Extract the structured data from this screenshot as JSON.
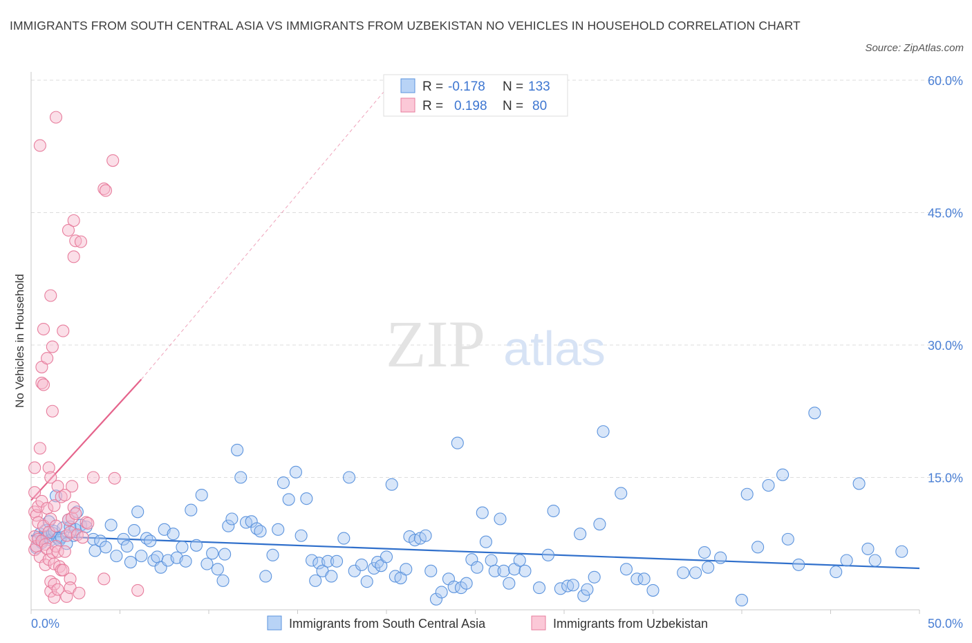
{
  "title": "IMMIGRANTS FROM SOUTH CENTRAL ASIA VS IMMIGRANTS FROM UZBEKISTAN NO VEHICLES IN HOUSEHOLD CORRELATION CHART",
  "source": "Source: ZipAtlas.com",
  "watermark": {
    "zip": "ZIP",
    "atlas": "atlas"
  },
  "colors": {
    "blue_fill": "#a9c8f2",
    "blue_stroke": "#5b93dd",
    "blue_line": "#2f6fcb",
    "pink_fill": "#f6b8cb",
    "pink_stroke": "#e77c9c",
    "pink_line": "#e5648c",
    "grid": "#dddddd",
    "tick_label": "#4a7fd4"
  },
  "stats": [
    {
      "r_label": "R =",
      "r_value": "-0.178",
      "n_label": "N =",
      "n_value": "133"
    },
    {
      "r_label": "R =",
      "r_value": "0.198",
      "n_label": "N =",
      "n_value": "80"
    }
  ],
  "chart_data": {
    "type": "scatter",
    "ylabel": "No Vehicles in Household",
    "xlim": [
      0,
      50
    ],
    "ylim": [
      0,
      60
    ],
    "x_tick_labels": [
      "0.0%",
      "50.0%"
    ],
    "y_ticks": [
      15,
      30,
      45,
      60
    ],
    "y_tick_labels": [
      "15.0%",
      "30.0%",
      "45.0%",
      "60.0%"
    ],
    "grid": "horizontal dashed",
    "legend_position": "bottom-center",
    "series": [
      {
        "name": "Immigrants from South Central Asia",
        "color": "blue",
        "trend": {
          "x": [
            0,
            50
          ],
          "y": [
            8.4,
            4.7
          ],
          "style": "solid"
        },
        "points": [
          [
            0.3,
            7.0
          ],
          [
            0.4,
            8.2
          ],
          [
            0.5,
            8.6
          ],
          [
            0.6,
            7.6
          ],
          [
            0.7,
            8.1
          ],
          [
            0.8,
            9.0
          ],
          [
            0.9,
            8.3
          ],
          [
            1.0,
            10.0
          ],
          [
            1.1,
            7.9
          ],
          [
            1.2,
            8.7
          ],
          [
            1.3,
            8.9
          ],
          [
            1.4,
            12.9
          ],
          [
            1.5,
            8.1
          ],
          [
            1.6,
            7.9
          ],
          [
            1.7,
            8.2
          ],
          [
            1.8,
            9.3
          ],
          [
            2.0,
            7.5
          ],
          [
            2.1,
            10.2
          ],
          [
            2.2,
            9.4
          ],
          [
            2.4,
            8.4
          ],
          [
            2.5,
            9.1
          ],
          [
            2.6,
            11.1
          ],
          [
            2.8,
            9.6
          ],
          [
            3.1,
            9.4
          ],
          [
            3.5,
            8.0
          ],
          [
            3.6,
            6.7
          ],
          [
            3.9,
            7.8
          ],
          [
            4.2,
            7.1
          ],
          [
            4.5,
            9.6
          ],
          [
            4.8,
            6.1
          ],
          [
            5.2,
            8.0
          ],
          [
            5.4,
            7.2
          ],
          [
            5.6,
            5.4
          ],
          [
            5.8,
            9.0
          ],
          [
            6.0,
            11.1
          ],
          [
            6.2,
            6.1
          ],
          [
            6.5,
            8.1
          ],
          [
            6.7,
            7.8
          ],
          [
            6.9,
            5.6
          ],
          [
            7.1,
            6.0
          ],
          [
            7.3,
            4.8
          ],
          [
            7.5,
            9.1
          ],
          [
            7.7,
            5.6
          ],
          [
            8.0,
            8.6
          ],
          [
            8.2,
            5.9
          ],
          [
            8.5,
            7.1
          ],
          [
            8.7,
            5.5
          ],
          [
            9.0,
            11.3
          ],
          [
            9.3,
            7.3
          ],
          [
            9.6,
            13.0
          ],
          [
            9.9,
            5.2
          ],
          [
            10.2,
            6.4
          ],
          [
            10.5,
            4.6
          ],
          [
            10.8,
            3.3
          ],
          [
            10.9,
            6.3
          ],
          [
            11.1,
            9.5
          ],
          [
            11.3,
            10.3
          ],
          [
            11.6,
            18.1
          ],
          [
            11.8,
            15.0
          ],
          [
            12.1,
            9.9
          ],
          [
            12.4,
            10.0
          ],
          [
            12.7,
            9.2
          ],
          [
            12.9,
            8.9
          ],
          [
            13.2,
            3.8
          ],
          [
            13.6,
            6.2
          ],
          [
            13.9,
            9.1
          ],
          [
            14.2,
            14.4
          ],
          [
            14.5,
            12.5
          ],
          [
            14.9,
            15.6
          ],
          [
            15.2,
            8.4
          ],
          [
            15.5,
            12.6
          ],
          [
            15.8,
            5.6
          ],
          [
            16.0,
            3.3
          ],
          [
            16.2,
            5.3
          ],
          [
            16.4,
            4.4
          ],
          [
            16.7,
            5.5
          ],
          [
            16.9,
            3.8
          ],
          [
            17.2,
            5.5
          ],
          [
            17.6,
            8.1
          ],
          [
            17.9,
            15.0
          ],
          [
            18.2,
            4.4
          ],
          [
            18.6,
            5.1
          ],
          [
            18.9,
            3.2
          ],
          [
            19.3,
            4.7
          ],
          [
            19.5,
            5.4
          ],
          [
            19.7,
            5.0
          ],
          [
            20.0,
            6.0
          ],
          [
            20.3,
            14.2
          ],
          [
            20.5,
            3.8
          ],
          [
            20.8,
            3.6
          ],
          [
            21.1,
            4.6
          ],
          [
            21.3,
            8.3
          ],
          [
            21.6,
            7.9
          ],
          [
            21.9,
            8.1
          ],
          [
            22.2,
            8.4
          ],
          [
            22.5,
            4.4
          ],
          [
            22.8,
            1.2
          ],
          [
            23.1,
            2.0
          ],
          [
            23.5,
            3.5
          ],
          [
            23.8,
            2.6
          ],
          [
            24.0,
            18.9
          ],
          [
            24.2,
            2.5
          ],
          [
            24.5,
            3.0
          ],
          [
            24.8,
            5.7
          ],
          [
            25.1,
            4.8
          ],
          [
            25.4,
            11.0
          ],
          [
            25.6,
            7.7
          ],
          [
            25.9,
            5.6
          ],
          [
            26.1,
            4.4
          ],
          [
            26.4,
            10.3
          ],
          [
            26.6,
            4.4
          ],
          [
            26.9,
            3.0
          ],
          [
            27.2,
            4.6
          ],
          [
            27.5,
            5.6
          ],
          [
            27.8,
            4.4
          ],
          [
            28.6,
            2.5
          ],
          [
            29.1,
            6.2
          ],
          [
            29.4,
            11.2
          ],
          [
            29.8,
            2.4
          ],
          [
            30.2,
            2.7
          ],
          [
            30.5,
            2.8
          ],
          [
            30.9,
            8.6
          ],
          [
            31.1,
            1.6
          ],
          [
            31.3,
            2.3
          ],
          [
            31.7,
            3.7
          ],
          [
            32.0,
            9.7
          ],
          [
            32.2,
            20.2
          ],
          [
            33.2,
            13.2
          ],
          [
            33.5,
            4.6
          ],
          [
            34.1,
            3.5
          ],
          [
            34.5,
            3.5
          ],
          [
            35.0,
            2.2
          ],
          [
            36.7,
            4.2
          ],
          [
            37.4,
            4.2
          ],
          [
            37.9,
            6.5
          ],
          [
            38.1,
            4.8
          ],
          [
            38.8,
            5.9
          ],
          [
            40.3,
            13.1
          ],
          [
            40.9,
            7.1
          ],
          [
            41.5,
            14.1
          ],
          [
            42.3,
            15.3
          ],
          [
            42.6,
            8.0
          ],
          [
            43.2,
            5.1
          ],
          [
            44.1,
            22.3
          ],
          [
            45.3,
            4.3
          ],
          [
            45.9,
            5.6
          ],
          [
            46.6,
            14.3
          ],
          [
            47.1,
            6.9
          ],
          [
            47.5,
            5.6
          ],
          [
            49.0,
            6.6
          ],
          [
            40.0,
            1.1
          ]
        ]
      },
      {
        "name": "Immigrants from Uzbekistan",
        "color": "pink",
        "trend": {
          "x": [
            0,
            6.2
          ],
          "y": [
            12.4,
            26.1
          ],
          "style": "solid",
          "extension": {
            "x": [
              6.2,
              20.4
            ],
            "y": [
              26.1,
              60.0
            ],
            "style": "dashed"
          }
        },
        "points": [
          [
            0.2,
            6.8
          ],
          [
            0.2,
            8.3
          ],
          [
            0.2,
            11.1
          ],
          [
            0.2,
            13.3
          ],
          [
            0.2,
            16.1
          ],
          [
            0.3,
            10.7
          ],
          [
            0.3,
            7.2
          ],
          [
            0.4,
            9.9
          ],
          [
            0.4,
            11.7
          ],
          [
            0.4,
            8.0
          ],
          [
            0.5,
            52.6
          ],
          [
            0.5,
            18.3
          ],
          [
            0.5,
            6.0
          ],
          [
            0.6,
            7.8
          ],
          [
            0.6,
            12.3
          ],
          [
            0.6,
            27.5
          ],
          [
            0.6,
            25.7
          ],
          [
            0.7,
            25.5
          ],
          [
            0.7,
            31.8
          ],
          [
            0.7,
            9.5
          ],
          [
            0.8,
            7.4
          ],
          [
            0.8,
            5.1
          ],
          [
            0.9,
            11.5
          ],
          [
            0.9,
            6.9
          ],
          [
            0.9,
            28.5
          ],
          [
            1.0,
            16.1
          ],
          [
            1.0,
            5.7
          ],
          [
            1.0,
            8.8
          ],
          [
            1.1,
            35.6
          ],
          [
            1.1,
            15.0
          ],
          [
            1.1,
            10.3
          ],
          [
            1.1,
            2.1
          ],
          [
            1.1,
            3.2
          ],
          [
            1.2,
            22.5
          ],
          [
            1.2,
            29.8
          ],
          [
            1.2,
            6.5
          ],
          [
            1.3,
            5.2
          ],
          [
            1.3,
            11.8
          ],
          [
            1.3,
            2.9
          ],
          [
            1.3,
            1.4
          ],
          [
            1.4,
            55.8
          ],
          [
            1.4,
            9.5
          ],
          [
            1.4,
            7.2
          ],
          [
            1.5,
            14.0
          ],
          [
            1.5,
            6.6
          ],
          [
            1.5,
            2.3
          ],
          [
            1.6,
            4.9
          ],
          [
            1.7,
            12.8
          ],
          [
            1.7,
            4.5
          ],
          [
            1.8,
            31.6
          ],
          [
            1.8,
            4.5
          ],
          [
            1.9,
            13.0
          ],
          [
            1.9,
            6.6
          ],
          [
            2.0,
            8.4
          ],
          [
            2.0,
            1.5
          ],
          [
            2.1,
            43.0
          ],
          [
            2.1,
            10.2
          ],
          [
            2.2,
            8.8
          ],
          [
            2.2,
            3.5
          ],
          [
            2.2,
            2.5
          ],
          [
            2.3,
            14.0
          ],
          [
            2.3,
            10.4
          ],
          [
            2.4,
            44.1
          ],
          [
            2.4,
            40.0
          ],
          [
            2.4,
            11.6
          ],
          [
            2.5,
            41.8
          ],
          [
            2.5,
            10.9
          ],
          [
            2.6,
            8.5
          ],
          [
            2.7,
            1.9
          ],
          [
            2.8,
            41.7
          ],
          [
            2.9,
            8.2
          ],
          [
            3.1,
            9.9
          ],
          [
            3.2,
            9.8
          ],
          [
            3.5,
            15.0
          ],
          [
            4.1,
            47.7
          ],
          [
            4.1,
            3.5
          ],
          [
            4.2,
            47.5
          ],
          [
            4.6,
            50.9
          ],
          [
            4.7,
            14.9
          ],
          [
            6.0,
            2.2
          ]
        ]
      }
    ]
  }
}
